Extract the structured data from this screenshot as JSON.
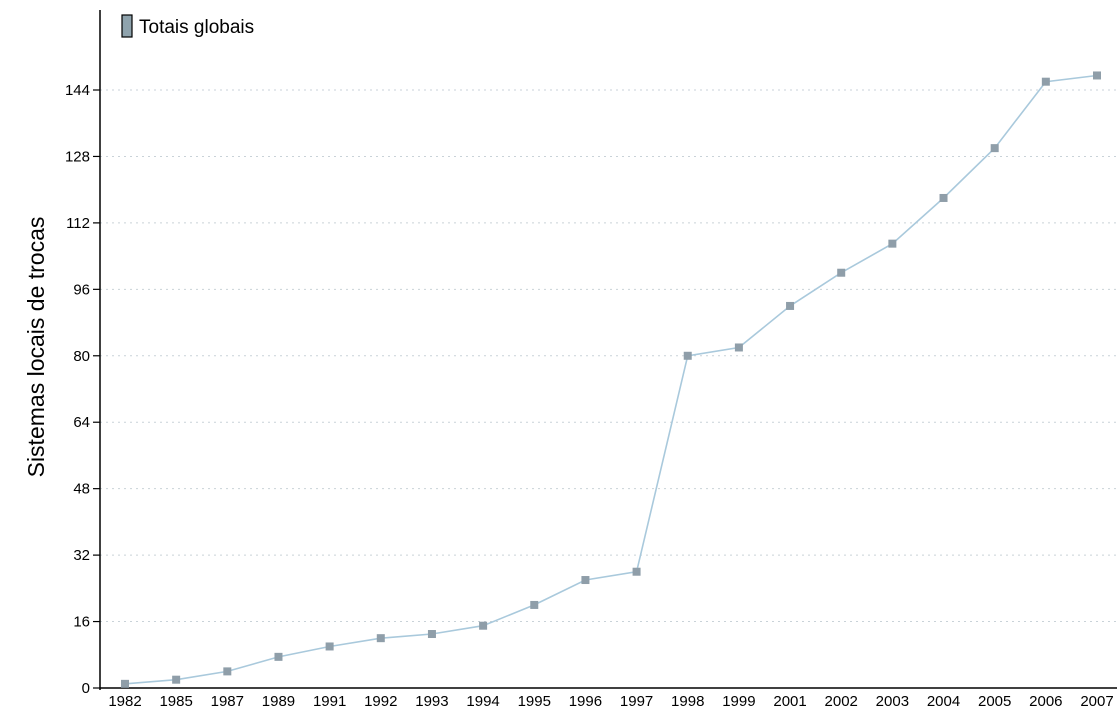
{
  "chart_data": {
    "type": "line",
    "ylabel": "Sistemas locais de trocas",
    "xlabel": "",
    "title": "",
    "legend": {
      "placement": "top-left",
      "entries": [
        "Totais globais"
      ]
    },
    "categories": [
      "1982",
      "1985",
      "1987",
      "1989",
      "1991",
      "1992",
      "1993",
      "1994",
      "1995",
      "1996",
      "1997",
      "1998",
      "1999",
      "2001",
      "2002",
      "2003",
      "2004",
      "2005",
      "2006",
      "2007"
    ],
    "series": [
      {
        "name": "Totais globais",
        "values": [
          1,
          2,
          4,
          7.5,
          10,
          12,
          13,
          15,
          20,
          26,
          28,
          80,
          82,
          92,
          100,
          107,
          118,
          130,
          146,
          147.5
        ]
      }
    ],
    "ylim": [
      0,
      160
    ],
    "yticks": [
      0,
      16,
      32,
      48,
      64,
      80,
      96,
      112,
      128,
      144
    ],
    "grid": {
      "horizontal": true,
      "style": "dotted"
    },
    "colors": {
      "line": "#a9c9dc",
      "marker": "#8f9ea9",
      "legend_swatch": "#8fa3ad"
    }
  }
}
